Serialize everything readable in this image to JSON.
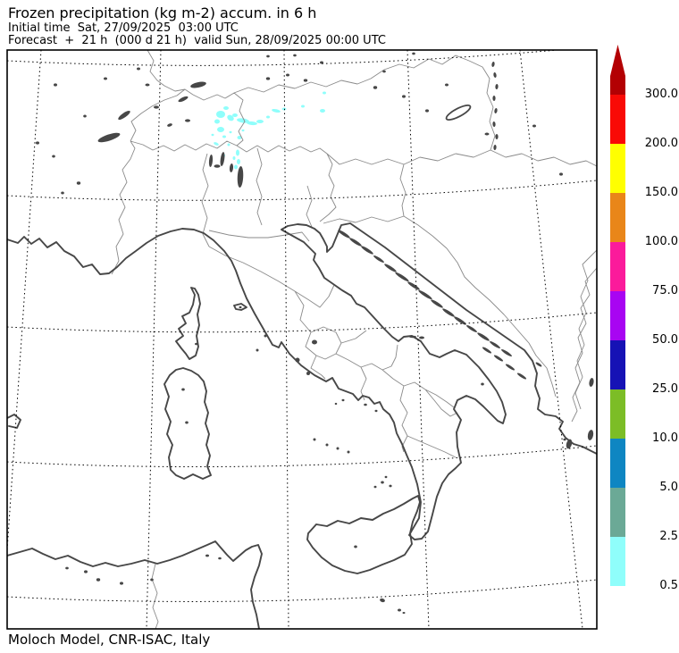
{
  "header": {
    "title": "Frozen precipitation (kg m-2) accum. in 6 h",
    "initial_time_line": "Initial time  Sat, 27/09/2025  03:00 UTC",
    "forecast_line": "Forecast  +  21 h  (000 d 21 h)  valid Sun, 28/09/2025 00:00 UTC"
  },
  "footer": {
    "credit": "Moloch Model, CNR-ISAC, Italy"
  },
  "colorbar": {
    "levels_top_to_bottom": [
      "300.0",
      "200.0",
      "150.0",
      "100.0",
      "75.0",
      "50.0",
      "25.0",
      "10.0",
      "5.0",
      "2.5",
      "0.5"
    ],
    "segment_colors_top_to_bottom": [
      "#f90a06",
      "#ffff00",
      "#e98619",
      "#fb1b9b",
      "#a805f2",
      "#1612b5",
      "#7cbd26",
      "#0e86c2",
      "#6ba996",
      "#8ffefb"
    ],
    "overflow_color": "#b30003"
  },
  "map": {
    "precip_color": "#8ffefb",
    "coast_color": "#474747",
    "border_color": "#8a8a8a",
    "grid_color": "#000000",
    "precip_patches": [
      [
        247,
        128,
        5,
        4,
        0
      ],
      [
        253,
        121,
        3,
        2,
        0
      ],
      [
        258,
        132,
        4,
        3,
        35
      ],
      [
        243,
        136,
        3,
        2.5,
        0
      ],
      [
        263,
        129,
        3,
        2,
        0
      ],
      [
        272,
        135,
        7,
        2.5,
        8
      ],
      [
        282,
        138,
        6,
        2,
        5
      ],
      [
        291,
        136,
        4,
        2,
        0
      ],
      [
        300,
        131,
        2,
        1.5,
        0
      ],
      [
        309,
        124,
        5,
        1.8,
        12
      ],
      [
        318,
        122,
        2.5,
        1.5,
        0
      ],
      [
        339,
        119,
        2,
        1.5,
        0
      ],
      [
        361,
        124,
        3,
        2,
        0
      ],
      [
        363,
        104,
        2,
        1.5,
        0
      ],
      [
        247,
        145,
        4,
        3,
        0
      ],
      [
        251,
        153,
        2,
        1.5,
        0
      ],
      [
        268,
        154,
        2.5,
        2,
        0
      ],
      [
        242,
        161,
        3,
        1.5,
        25
      ],
      [
        256,
        162,
        1.5,
        1.5,
        0
      ],
      [
        266,
        171,
        2,
        3.5,
        0
      ],
      [
        262,
        177,
        1.5,
        2,
        0
      ],
      [
        267,
        181,
        2,
        3,
        0
      ],
      [
        250,
        174,
        2,
        1.5,
        0
      ],
      [
        264,
        187,
        2,
        2.5,
        0
      ],
      [
        270,
        191,
        1.5,
        2,
        0
      ],
      [
        258,
        148,
        1.5,
        1.2,
        0
      ],
      [
        272,
        146,
        1.5,
        1.2,
        0
      ],
      [
        238,
        151,
        1.5,
        1.2,
        0
      ]
    ]
  }
}
